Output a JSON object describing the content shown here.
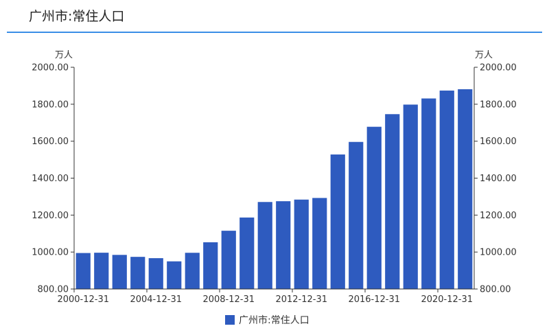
{
  "header": {
    "title": "广州市:常住人口"
  },
  "chart_data": {
    "type": "bar",
    "title": "广州市:常住人口",
    "y_unit_left": "万人",
    "y_unit_right": "万人",
    "ylim": [
      800,
      2000
    ],
    "y_ticks": [
      "800.00",
      "1000.00",
      "1200.00",
      "1400.00",
      "1600.00",
      "1800.00",
      "2000.00"
    ],
    "y_tick_values": [
      800,
      1000,
      1200,
      1400,
      1600,
      1800,
      2000
    ],
    "x_tick_labels": [
      "2000-12-31",
      "2004-12-31",
      "2008-12-31",
      "2012-12-31",
      "2016-12-31",
      "2020-12-31"
    ],
    "categories": [
      "2000-12-31",
      "2001-12-31",
      "2002-12-31",
      "2003-12-31",
      "2004-12-31",
      "2005-12-31",
      "2006-12-31",
      "2007-12-31",
      "2008-12-31",
      "2009-12-31",
      "2010-12-31",
      "2011-12-31",
      "2012-12-31",
      "2013-12-31",
      "2014-12-31",
      "2015-12-31",
      "2016-12-31",
      "2017-12-31",
      "2018-12-31",
      "2019-12-31",
      "2020-12-31",
      "2021-12-31"
    ],
    "series": [
      {
        "name": "广州市:常住人口",
        "color": "#2e5bbf",
        "values": [
          994.8,
          996.4,
          984.6,
          974.0,
          966.9,
          949.7,
          996.0,
          1053.0,
          1115.3,
          1186.9,
          1270.9,
          1275.1,
          1283.9,
          1292.7,
          1528.0,
          1596.0,
          1678.0,
          1746.3,
          1798.0,
          1831.2,
          1874.0,
          1881.1
        ]
      }
    ],
    "legend_position": "bottom",
    "grid": false
  }
}
